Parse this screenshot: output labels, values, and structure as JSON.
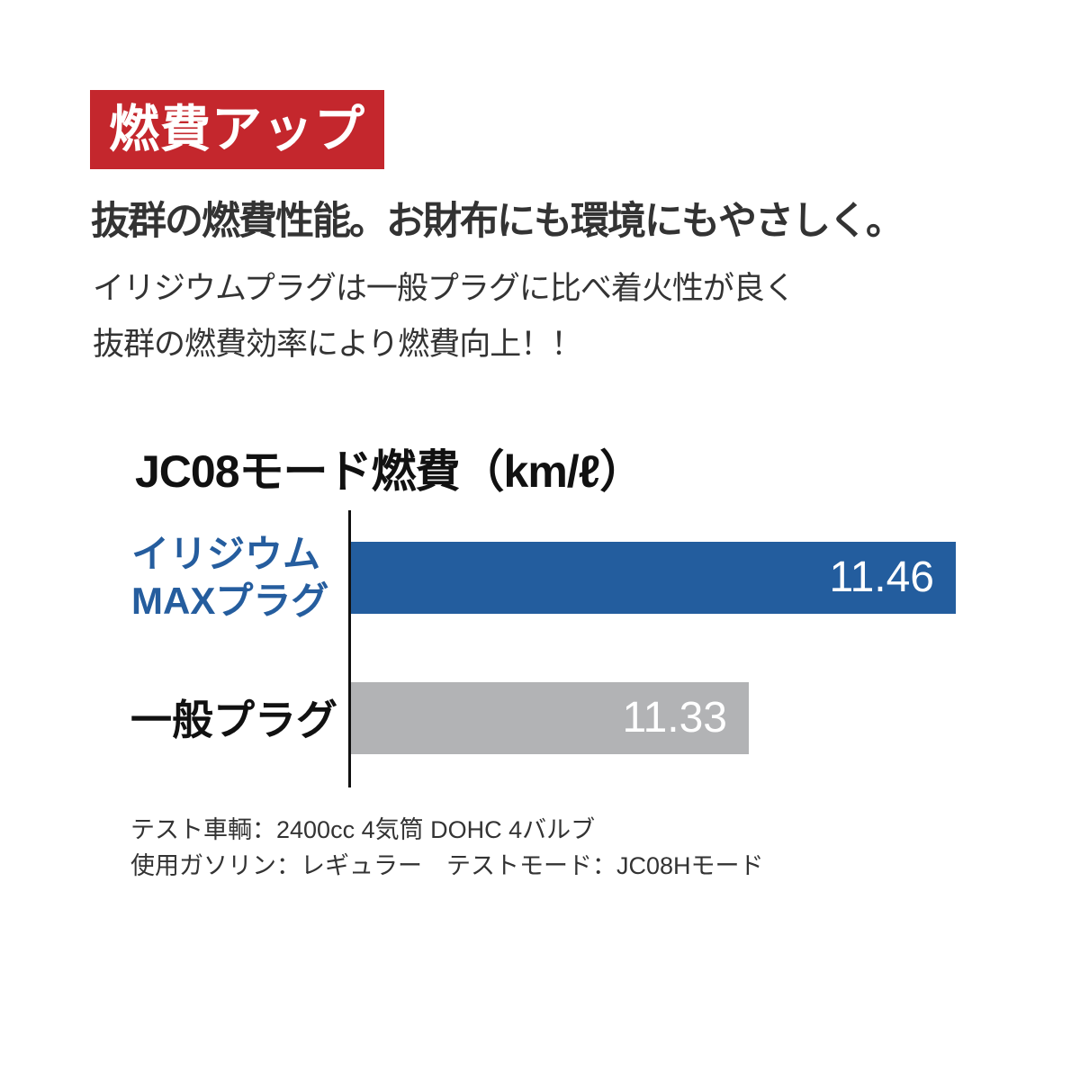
{
  "badge": {
    "label": "燃費アップ",
    "bg_color": "#c4272d",
    "text_color": "#ffffff"
  },
  "heading": "抜群の燃費性能。お財布にも環境にもやさしく。",
  "body_lines": [
    "イリジウムプラグは一般プラグに比べ着火性が良く",
    "抜群の燃費効率により燃費向上！！"
  ],
  "chart_data": {
    "type": "bar",
    "orientation": "horizontal",
    "title": "JC08モード燃費（km/ℓ）",
    "categories": [
      "イリジウムMAXプラグ",
      "一般プラグ"
    ],
    "values": [
      11.46,
      11.33
    ],
    "value_labels": [
      "11.46",
      "11.33"
    ],
    "unit": "km/ℓ",
    "xlim": [
      11.08,
      11.46
    ],
    "bar_colors": [
      "#235d9e",
      "#b2b3b5"
    ],
    "value_text_color": "#ffffff",
    "grid": false,
    "legend_position": "none"
  },
  "chart": {
    "rows": [
      {
        "label_line1": "イリジウム",
        "label_line2": "MAXプラグ",
        "value": "11.46",
        "label_color": "#255d9e"
      },
      {
        "label_line1": "一般プラグ",
        "value": "11.33",
        "label_color": "#111111"
      }
    ]
  },
  "footer_lines": [
    "テスト車輌：2400cc 4気筒 DOHC 4バルブ",
    "使用ガソリン：レギュラー　テストモード：JC08Hモード"
  ]
}
